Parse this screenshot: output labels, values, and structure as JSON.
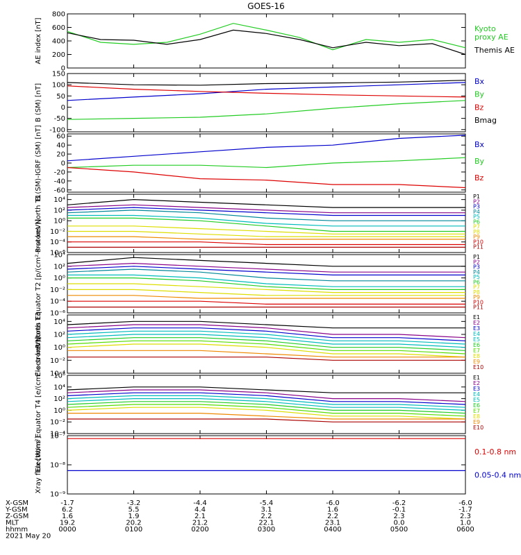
{
  "title": "GOES-16",
  "colors": {
    "black": "#000000",
    "red": "#dd0000",
    "green": "#22cc22",
    "blue": "#0000cc",
    "purple": "#880088",
    "violet": "#7711bb",
    "cyan": "#00bbbb",
    "teal": "#008899",
    "yellow": "#dddd00",
    "orange": "#ee8800",
    "darkred": "#aa0000",
    "lime": "#55dd00"
  },
  "ephemeris": {
    "row_labels": [
      "X-GSM",
      "Y-GSM",
      "Z-GSM",
      "MLT",
      "hhmm"
    ],
    "columns": [
      [
        "-1.7",
        "6.2",
        "1.6",
        "19.2",
        "0000"
      ],
      [
        "-3.2",
        "5.5",
        "1.9",
        "20.2",
        "0100"
      ],
      [
        "-4.4",
        "4.4",
        "2.1",
        "21.2",
        "0200"
      ],
      [
        "-5.4",
        "3.1",
        "2.2",
        "22.1",
        "0300"
      ],
      [
        "-6.0",
        "1.6",
        "2.2",
        "23.1",
        "0400"
      ],
      [
        "-6.2",
        "-0.1",
        "2.3",
        "0.0",
        "0500"
      ],
      [
        "-6.0",
        "-1.7",
        "2.3",
        "1.0",
        "0600"
      ]
    ],
    "date": "2021 May 20"
  },
  "chart_data": [
    {
      "type": "line",
      "ylabel": "AE index [nT]",
      "ylim": [
        0,
        800
      ],
      "yscale": "linear",
      "yticks": [
        {
          "v": 0,
          "t": "0"
        },
        {
          "v": 200,
          "t": "200"
        },
        {
          "v": 400,
          "t": "400"
        },
        {
          "v": 600,
          "t": "600"
        },
        {
          "v": 800,
          "t": "800"
        }
      ],
      "x": [
        0,
        0.5,
        1,
        1.5,
        2,
        2.5,
        3,
        3.5,
        4,
        4.5,
        5,
        5.5,
        6
      ],
      "series": [
        {
          "name": "Kyoto proxy AE",
          "color": "green",
          "legend_lines": [
            "Kyoto",
            "proxy AE"
          ],
          "values": [
            540,
            380,
            350,
            380,
            500,
            660,
            560,
            450,
            270,
            420,
            380,
            420,
            300
          ]
        },
        {
          "name": "Themis AE",
          "color": "black",
          "legend_lines": [
            "Themis AE"
          ],
          "values": [
            520,
            420,
            410,
            350,
            420,
            560,
            510,
            420,
            300,
            380,
            330,
            360,
            200
          ]
        }
      ]
    },
    {
      "type": "line",
      "ylabel": "B (SM) [nT]",
      "ylim": [
        -110,
        150
      ],
      "yscale": "linear",
      "yticks": [
        {
          "v": -100,
          "t": "-100"
        },
        {
          "v": -50,
          "t": "-50"
        },
        {
          "v": 0,
          "t": "0"
        },
        {
          "v": 50,
          "t": "50"
        },
        {
          "v": 100,
          "t": "100"
        },
        {
          "v": 150,
          "t": "150"
        }
      ],
      "x": [
        0,
        1,
        2,
        3,
        4,
        5,
        6
      ],
      "series": [
        {
          "name": "Bx",
          "color": "blue",
          "legend_lines": [
            "Bx"
          ],
          "values": [
            30,
            45,
            60,
            80,
            90,
            100,
            110
          ]
        },
        {
          "name": "By",
          "color": "green",
          "legend_lines": [
            "By"
          ],
          "values": [
            -55,
            -50,
            -45,
            -30,
            -5,
            15,
            30
          ]
        },
        {
          "name": "Bz",
          "color": "red",
          "legend_lines": [
            "Bz"
          ],
          "values": [
            95,
            80,
            70,
            62,
            55,
            50,
            45
          ]
        },
        {
          "name": "Bmag",
          "color": "black",
          "legend_lines": [
            "Bmag"
          ],
          "values": [
            110,
            100,
            98,
            105,
            108,
            112,
            120
          ]
        }
      ]
    },
    {
      "type": "line",
      "ylabel": "B (SM)-IGRF (SM) [nT]",
      "ylim": [
        -65,
        65
      ],
      "yscale": "linear",
      "yticks": [
        {
          "v": -60,
          "t": "-60"
        },
        {
          "v": -40,
          "t": "-40"
        },
        {
          "v": -20,
          "t": "-20"
        },
        {
          "v": 0,
          "t": "0"
        },
        {
          "v": 20,
          "t": "20"
        },
        {
          "v": 40,
          "t": "40"
        },
        {
          "v": 60,
          "t": "60"
        }
      ],
      "x": [
        0,
        1,
        2,
        3,
        4,
        5,
        6
      ],
      "series": [
        {
          "name": "Bx",
          "color": "blue",
          "legend_lines": [
            "Bx"
          ],
          "values": [
            5,
            15,
            25,
            35,
            40,
            55,
            62
          ]
        },
        {
          "name": "By",
          "color": "green",
          "legend_lines": [
            "By"
          ],
          "values": [
            -10,
            -5,
            -5,
            -10,
            0,
            5,
            12
          ]
        },
        {
          "name": "Bz",
          "color": "red",
          "legend_lines": [
            "Bz"
          ],
          "values": [
            -10,
            -20,
            -35,
            -38,
            -48,
            -48,
            -55
          ]
        }
      ]
    },
    {
      "type": "line",
      "ylabel": "Protons North T1",
      "ylim": [
        -6,
        5
      ],
      "yscale": "log10",
      "yticks": [
        {
          "v": -6,
          "t": "10⁻⁶"
        },
        {
          "v": -4,
          "t": "10⁻⁴"
        },
        {
          "v": -2,
          "t": "10⁻²"
        },
        {
          "v": 0,
          "t": "10⁰"
        },
        {
          "v": 2,
          "t": "10²"
        },
        {
          "v": 4,
          "t": "10⁴"
        }
      ],
      "x": [
        0,
        1,
        2,
        3,
        4,
        5,
        6
      ],
      "series": [
        {
          "name": "P1",
          "color": "black",
          "values": [
            3,
            4,
            3.5,
            3,
            2.5,
            2.5,
            2.5
          ]
        },
        {
          "name": "P2",
          "color": "purple",
          "values": [
            2.5,
            3,
            2.5,
            2,
            1.5,
            1.5,
            1.5
          ]
        },
        {
          "name": "P3",
          "color": "blue",
          "values": [
            2,
            2.5,
            2,
            1.5,
            1,
            1,
            1
          ]
        },
        {
          "name": "P4",
          "color": "teal",
          "values": [
            1.5,
            2,
            1.5,
            0.5,
            0,
            0,
            0
          ]
        },
        {
          "name": "P5",
          "color": "cyan",
          "values": [
            1,
            1,
            0.5,
            -0.5,
            -1,
            -1,
            -1
          ]
        },
        {
          "name": "P6",
          "color": "green",
          "values": [
            0.5,
            0.5,
            0,
            -1,
            -2,
            -2,
            -2
          ]
        },
        {
          "name": "P7",
          "color": "yellow",
          "values": [
            -1,
            -1,
            -1.5,
            -2,
            -2.5,
            -2.5,
            -2.5
          ]
        },
        {
          "name": "P8",
          "color": "yellow",
          "values": [
            -2,
            -2,
            -2.5,
            -3,
            -3,
            -3,
            -3
          ]
        },
        {
          "name": "P9",
          "color": "orange",
          "values": [
            -3,
            -3,
            -3.5,
            -3.5,
            -3.5,
            -3.5,
            -3.5
          ]
        },
        {
          "name": "P10",
          "color": "red",
          "values": [
            -4,
            -4,
            -4,
            -4.5,
            -4.5,
            -4.5,
            -4.5
          ]
        },
        {
          "name": "P11",
          "color": "darkred",
          "values": [
            -5,
            -5,
            -5,
            -5,
            -5,
            -5,
            -5
          ]
        }
      ]
    },
    {
      "type": "line",
      "ylabel": "Protons Equator T2 [p/(cm²-s-sr-keV)]",
      "ylim": [
        -6,
        4
      ],
      "yscale": "log10",
      "yticks": [
        {
          "v": -6,
          "t": "10⁻⁶"
        },
        {
          "v": -4,
          "t": "10⁻⁴"
        },
        {
          "v": -2,
          "t": "10⁻²"
        },
        {
          "v": 0,
          "t": "10⁰"
        },
        {
          "v": 2,
          "t": "10²"
        },
        {
          "v": 4,
          "t": "10⁴"
        }
      ],
      "x": [
        0,
        1,
        2,
        3,
        4,
        5,
        6
      ],
      "series": [
        {
          "name": "P1",
          "color": "black",
          "values": [
            2.5,
            3.5,
            3,
            2.5,
            2,
            2,
            2
          ]
        },
        {
          "name": "P2",
          "color": "purple",
          "values": [
            2,
            2.5,
            2,
            1.5,
            1,
            1,
            1
          ]
        },
        {
          "name": "P3",
          "color": "blue",
          "values": [
            1.5,
            2,
            1.5,
            1,
            0.5,
            0.5,
            0.5
          ]
        },
        {
          "name": "P4",
          "color": "teal",
          "values": [
            1,
            1.5,
            1,
            0,
            -0.5,
            -0.5,
            -0.5
          ]
        },
        {
          "name": "P5",
          "color": "cyan",
          "values": [
            0.5,
            0.5,
            0,
            -1,
            -1.5,
            -1.5,
            -1.5
          ]
        },
        {
          "name": "P6",
          "color": "green",
          "values": [
            0,
            0,
            -0.5,
            -1.5,
            -2,
            -2,
            -2
          ]
        },
        {
          "name": "P7",
          "color": "yellow",
          "values": [
            -1,
            -1,
            -1.5,
            -2,
            -2.5,
            -2.5,
            -2.5
          ]
        },
        {
          "name": "P8",
          "color": "yellow",
          "values": [
            -2,
            -2,
            -2.5,
            -3,
            -3,
            -3,
            -3
          ]
        },
        {
          "name": "P9",
          "color": "orange",
          "values": [
            -3,
            -3,
            -3.5,
            -3.5,
            -3.5,
            -3.5,
            -3.5
          ]
        },
        {
          "name": "P10",
          "color": "red",
          "values": [
            -4,
            -4,
            -4,
            -4.5,
            -4.5,
            -4.5,
            -4.5
          ]
        },
        {
          "name": "P11",
          "color": "darkred",
          "values": [
            -5,
            -5,
            -5,
            -5,
            -5,
            -5,
            -5
          ]
        }
      ]
    },
    {
      "type": "line",
      "ylabel": "Electrons North T3",
      "ylim": [
        -4,
        5
      ],
      "yscale": "log10",
      "yticks": [
        {
          "v": -4,
          "t": "10⁻⁴"
        },
        {
          "v": -2,
          "t": "10⁻²"
        },
        {
          "v": 0,
          "t": "10⁰"
        },
        {
          "v": 2,
          "t": "10²"
        },
        {
          "v": 4,
          "t": "10⁴"
        }
      ],
      "x": [
        0,
        1,
        2,
        3,
        4,
        5,
        6
      ],
      "series": [
        {
          "name": "E1",
          "color": "black",
          "values": [
            3.5,
            4,
            4,
            3.5,
            3,
            3,
            3
          ]
        },
        {
          "name": "E2",
          "color": "purple",
          "values": [
            3,
            3.5,
            3.5,
            3,
            2,
            2,
            1.5
          ]
        },
        {
          "name": "E3",
          "color": "blue",
          "values": [
            2.5,
            3,
            3,
            2.5,
            1.5,
            1.5,
            1
          ]
        },
        {
          "name": "E4",
          "color": "cyan",
          "values": [
            2,
            2.5,
            2.5,
            2,
            1,
            1,
            0.5
          ]
        },
        {
          "name": "E5",
          "color": "cyan",
          "values": [
            1.5,
            2,
            2,
            1.5,
            0.5,
            0.5,
            0
          ]
        },
        {
          "name": "E6",
          "color": "green",
          "values": [
            1,
            1.5,
            1.5,
            1,
            0,
            0,
            -0.5
          ]
        },
        {
          "name": "E7",
          "color": "lime",
          "values": [
            0.5,
            1,
            1,
            0.5,
            -0.5,
            -0.5,
            -1
          ]
        },
        {
          "name": "E8",
          "color": "yellow",
          "values": [
            0,
            0.5,
            0.5,
            0,
            -1,
            -1,
            -1.5
          ]
        },
        {
          "name": "E9",
          "color": "orange",
          "values": [
            -0.5,
            -0.5,
            -0.5,
            -1,
            -1.5,
            -1.5,
            -1.5
          ]
        },
        {
          "name": "E10",
          "color": "darkred",
          "values": [
            -1.5,
            -1.5,
            -1.5,
            -1.5,
            -2,
            -2,
            -2
          ]
        }
      ]
    },
    {
      "type": "line",
      "ylabel": "Electrons Equator T4 [e/(cm²-s-sr-keV)]",
      "ylim": [
        -4,
        6
      ],
      "yscale": "log10",
      "yticks": [
        {
          "v": -4,
          "t": "10⁻⁴"
        },
        {
          "v": -2,
          "t": "10⁻²"
        },
        {
          "v": 0,
          "t": "10⁰"
        },
        {
          "v": 2,
          "t": "10²"
        },
        {
          "v": 4,
          "t": "10⁴"
        },
        {
          "v": 6,
          "t": "10⁶"
        }
      ],
      "x": [
        0,
        1,
        2,
        3,
        4,
        5,
        6
      ],
      "series": [
        {
          "name": "E1",
          "color": "black",
          "values": [
            3.5,
            4,
            4,
            3.5,
            3,
            3,
            3
          ]
        },
        {
          "name": "E2",
          "color": "purple",
          "values": [
            3,
            3.5,
            3.5,
            3,
            2,
            2,
            1.5
          ]
        },
        {
          "name": "E3",
          "color": "blue",
          "values": [
            2.5,
            3,
            3,
            2.5,
            1.5,
            1.5,
            1
          ]
        },
        {
          "name": "E4",
          "color": "cyan",
          "values": [
            2,
            2.5,
            2.5,
            2,
            1,
            1,
            0.5
          ]
        },
        {
          "name": "E5",
          "color": "cyan",
          "values": [
            1.5,
            2,
            2,
            1.5,
            0.5,
            0.5,
            0
          ]
        },
        {
          "name": "E6",
          "color": "green",
          "values": [
            1,
            1.5,
            1.5,
            1,
            0,
            0,
            -0.5
          ]
        },
        {
          "name": "E7",
          "color": "lime",
          "values": [
            0.5,
            1,
            1,
            0.5,
            -0.5,
            -0.5,
            -1
          ]
        },
        {
          "name": "E8",
          "color": "yellow",
          "values": [
            0,
            0.5,
            0.5,
            0,
            -1,
            -1,
            -1.5
          ]
        },
        {
          "name": "E9",
          "color": "orange",
          "values": [
            -0.5,
            -0.5,
            -0.5,
            -1,
            -1.5,
            -1.5,
            -1.5
          ]
        },
        {
          "name": "E10",
          "color": "darkred",
          "values": [
            -1.5,
            -1.5,
            -1.5,
            -1.5,
            -2,
            -2,
            -2
          ]
        }
      ]
    },
    {
      "type": "line",
      "ylabel": "Xray flux [W/m²]",
      "ylim": [
        -9,
        -7
      ],
      "yscale": "log10",
      "yticks": [
        {
          "v": -9,
          "t": "10⁻⁹"
        },
        {
          "v": -8,
          "t": "10⁻⁸"
        },
        {
          "v": -7,
          "t": "10⁻⁷"
        }
      ],
      "x": [
        0,
        1,
        2,
        3,
        4,
        5,
        6
      ],
      "series": [
        {
          "name": "0.1-0.8 nm",
          "color": "red",
          "legend_lines": [
            "0.1-0.8 nm"
          ],
          "values": [
            -7.1,
            -7.1,
            -7.1,
            -7.1,
            -7.1,
            -7.1,
            -7.1
          ]
        },
        {
          "name": "0.05-0.4 nm",
          "color": "blue",
          "legend_lines": [
            "0.05-0.4 nm"
          ],
          "values": [
            -8.2,
            -8.2,
            -8.2,
            -8.2,
            -8.2,
            -8.2,
            -8.2
          ]
        }
      ]
    }
  ]
}
